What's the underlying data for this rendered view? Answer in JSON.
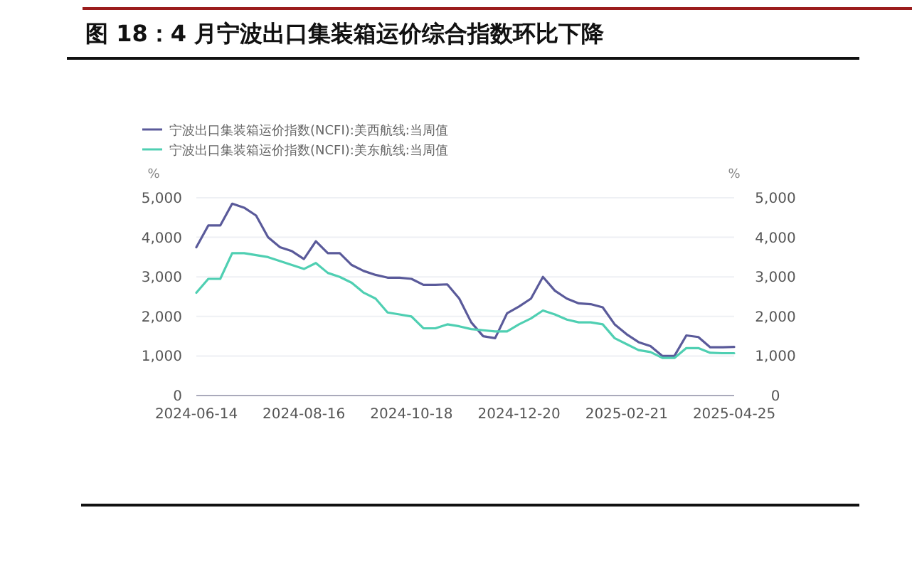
{
  "chart_data": {
    "type": "line",
    "title": "图 18：4 月宁波出口集装箱运价综合指数环比下降",
    "ylabel": "%",
    "y2label": "%",
    "x": [
      "2024-06-14",
      "2024-06-21",
      "2024-06-28",
      "2024-07-05",
      "2024-07-12",
      "2024-07-19",
      "2024-07-26",
      "2024-08-02",
      "2024-08-09",
      "2024-08-16",
      "2024-08-23",
      "2024-08-30",
      "2024-09-06",
      "2024-09-13",
      "2024-09-20",
      "2024-09-27",
      "2024-10-04",
      "2024-10-11",
      "2024-10-18",
      "2024-10-25",
      "2024-11-01",
      "2024-11-08",
      "2024-11-15",
      "2024-11-22",
      "2024-11-29",
      "2024-12-06",
      "2024-12-13",
      "2024-12-20",
      "2024-12-27",
      "2025-01-03",
      "2025-01-10",
      "2025-01-17",
      "2025-01-24",
      "2025-01-31",
      "2025-02-07",
      "2025-02-14",
      "2025-02-21",
      "2025-02-28",
      "2025-03-07",
      "2025-03-14",
      "2025-03-21",
      "2025-03-28",
      "2025-04-04",
      "2025-04-11",
      "2025-04-18",
      "2025-04-25"
    ],
    "series": [
      {
        "name": "宁波出口集装箱运价指数(NCFI):美西航线:当周值",
        "color": "#5a5a9a",
        "values": [
          3750,
          4300,
          4300,
          4850,
          4750,
          4550,
          4000,
          3750,
          3650,
          3450,
          3900,
          3600,
          3600,
          3300,
          3150,
          3050,
          2980,
          2980,
          2950,
          2800,
          2800,
          2810,
          2450,
          1850,
          1500,
          1450,
          2080,
          2250,
          2450,
          3000,
          2650,
          2450,
          2330,
          2310,
          2230,
          1800,
          1550,
          1350,
          1250,
          1000,
          1000,
          1520,
          1480,
          1220,
          1220,
          1230
        ]
      },
      {
        "name": "宁波出口集装箱运价指数(NCFI):美东航线:当周值",
        "color": "#4fcfb2",
        "values": [
          2600,
          2950,
          2950,
          3600,
          3600,
          3550,
          3500,
          3400,
          3300,
          3200,
          3350,
          3100,
          3000,
          2850,
          2600,
          2450,
          2100,
          2050,
          2000,
          1700,
          1700,
          1800,
          1750,
          1680,
          1650,
          1620,
          1620,
          1800,
          1950,
          2150,
          2050,
          1920,
          1850,
          1850,
          1800,
          1450,
          1300,
          1150,
          1100,
          950,
          950,
          1200,
          1200,
          1080,
          1070,
          1070
        ]
      }
    ],
    "xlim": [
      "2024-06-14",
      "2025-04-25"
    ],
    "xticks": [
      "2024-06-14",
      "2024-08-16",
      "2024-10-18",
      "2024-12-20",
      "2025-02-21",
      "2025-04-25"
    ],
    "ylim": [
      0,
      5000
    ],
    "yticks": [
      0,
      {
        "value": 1000,
        "label": "1,000"
      },
      {
        "value": 2000,
        "label": "2,000"
      },
      {
        "value": 3000,
        "label": "3,000"
      },
      {
        "value": 4000,
        "label": "4,000"
      },
      {
        "value": 5000,
        "label": "5,000"
      }
    ],
    "y2lim": [
      0,
      5000
    ],
    "y2ticks": [
      0,
      {
        "value": 1000,
        "label": "1,000"
      },
      {
        "value": 2000,
        "label": "2,000"
      },
      {
        "value": 3000,
        "label": "3,000"
      },
      {
        "value": 4000,
        "label": "4,000"
      },
      {
        "value": 5000,
        "label": "5,000"
      }
    ],
    "grid": "y",
    "legend": "top left",
    "marker": "none",
    "line_style": "solid"
  }
}
